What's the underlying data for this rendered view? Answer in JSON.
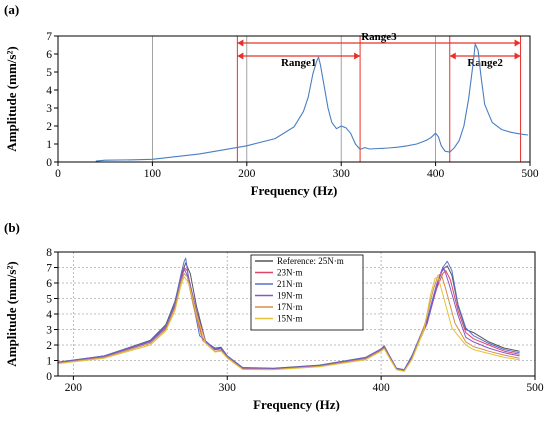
{
  "colors": {
    "range_lines": "#e8302b",
    "grid_a": "#8c8c8c",
    "grid_b": "#aaaaaa",
    "series_a": "#4a7ec0"
  },
  "chart_data": [
    {
      "panel": "(a)",
      "type": "line",
      "xlabel": "Frequency (Hz)",
      "ylabel": "Amplitude (mm/s²)",
      "xlim": [
        0,
        500
      ],
      "ylim": [
        0,
        7
      ],
      "xticks": [
        0,
        100,
        200,
        300,
        400,
        500
      ],
      "yticks": [
        0,
        1,
        2,
        3,
        4,
        5,
        6,
        7
      ],
      "grid": "vertical",
      "series": [
        {
          "color": "#4a7ec0",
          "x": [
            40,
            50,
            80,
            100,
            150,
            200,
            230,
            250,
            260,
            265,
            270,
            274,
            276,
            278,
            282,
            286,
            290,
            295,
            300,
            305,
            310,
            315,
            320,
            325,
            330,
            340,
            350,
            360,
            370,
            380,
            390,
            395,
            400,
            403,
            406,
            410,
            415,
            420,
            425,
            430,
            435,
            440,
            442,
            445,
            448,
            452,
            460,
            470,
            480,
            490,
            498
          ],
          "y": [
            0.05,
            0.1,
            0.12,
            0.15,
            0.45,
            0.9,
            1.3,
            1.95,
            2.8,
            3.6,
            4.9,
            5.6,
            5.82,
            5.4,
            4.2,
            3.0,
            2.2,
            1.85,
            2.0,
            1.9,
            1.6,
            1.0,
            0.7,
            0.8,
            0.72,
            0.75,
            0.78,
            0.82,
            0.9,
            1.0,
            1.2,
            1.35,
            1.6,
            1.4,
            0.9,
            0.6,
            0.55,
            0.8,
            1.2,
            2.0,
            3.5,
            5.6,
            6.55,
            6.2,
            4.8,
            3.2,
            2.2,
            1.8,
            1.65,
            1.55,
            1.5
          ]
        }
      ],
      "annotations": [
        {
          "label": "Range1",
          "from": 190,
          "to": 320
        },
        {
          "label": "Range2",
          "from": 415,
          "to": 490
        },
        {
          "label": "Range3",
          "from": 190,
          "to": 490
        }
      ]
    },
    {
      "panel": "(b)",
      "type": "line",
      "xlabel": "Frequency (Hz)",
      "ylabel": "Amplitude (mm/s²)",
      "xlim": [
        190,
        500
      ],
      "ylim": [
        0,
        8
      ],
      "xticks": [
        200,
        300,
        400,
        500
      ],
      "yticks": [
        0,
        1,
        2,
        3,
        4,
        5,
        6,
        7,
        8
      ],
      "grid": "both-dotted",
      "legend_position": "top-center",
      "series": [
        {
          "name": "Reference: 25N·m",
          "color": "#555555",
          "x": [
            190,
            220,
            250,
            260,
            266,
            270,
            273,
            276,
            280,
            286,
            292,
            296,
            300,
            310,
            330,
            360,
            390,
            400,
            402,
            406,
            410,
            415,
            420,
            430,
            436,
            440,
            443,
            446,
            450,
            455,
            460,
            470,
            480,
            490
          ],
          "y": [
            0.9,
            1.3,
            2.3,
            3.3,
            4.8,
            6.5,
            7.3,
            6.6,
            4.5,
            2.2,
            1.8,
            1.85,
            1.3,
            0.55,
            0.5,
            0.7,
            1.2,
            1.75,
            1.95,
            1.2,
            0.5,
            0.4,
            1.3,
            3.6,
            5.8,
            6.9,
            7.1,
            6.5,
            4.5,
            3.0,
            2.8,
            2.2,
            1.8,
            1.6
          ]
        },
        {
          "name": "23N·m",
          "color": "#e0456a",
          "x": [
            190,
            220,
            250,
            260,
            266,
            270,
            272,
            274,
            278,
            284,
            292,
            296,
            300,
            310,
            330,
            360,
            390,
            400,
            402,
            406,
            410,
            415,
            420,
            430,
            436,
            440,
            442,
            445,
            450,
            455,
            460,
            470,
            480,
            490
          ],
          "y": [
            0.85,
            1.25,
            2.2,
            3.1,
            4.6,
            6.3,
            7.0,
            6.8,
            4.8,
            2.4,
            1.7,
            1.75,
            1.25,
            0.5,
            0.45,
            0.65,
            1.15,
            1.7,
            1.9,
            1.15,
            0.45,
            0.35,
            1.2,
            3.5,
            5.6,
            6.6,
            6.8,
            6.2,
            4.2,
            2.8,
            2.4,
            2.0,
            1.6,
            1.4
          ]
        },
        {
          "name": "21N·m",
          "color": "#5a6fd0",
          "x": [
            190,
            220,
            250,
            260,
            266,
            270,
            272,
            273,
            276,
            282,
            292,
            296,
            300,
            310,
            330,
            360,
            390,
            400,
            402,
            406,
            410,
            415,
            420,
            430,
            436,
            440,
            443,
            446,
            450,
            455,
            460,
            470,
            480,
            490
          ],
          "y": [
            0.88,
            1.3,
            2.25,
            3.2,
            4.7,
            6.6,
            7.4,
            7.6,
            5.6,
            2.6,
            1.75,
            1.8,
            1.3,
            0.55,
            0.48,
            0.68,
            1.2,
            1.75,
            1.9,
            1.2,
            0.5,
            0.4,
            1.3,
            3.7,
            5.9,
            7.0,
            7.4,
            6.8,
            4.6,
            3.1,
            2.6,
            2.1,
            1.7,
            1.5
          ]
        },
        {
          "name": "19N·m",
          "color": "#8a55c8",
          "x": [
            190,
            220,
            250,
            260,
            266,
            270,
            272,
            275,
            280,
            286,
            292,
            296,
            300,
            310,
            330,
            360,
            390,
            400,
            402,
            406,
            410,
            415,
            420,
            430,
            436,
            439,
            441,
            444,
            450,
            455,
            460,
            470,
            480,
            490
          ],
          "y": [
            0.85,
            1.25,
            2.2,
            3.1,
            4.5,
            6.2,
            6.9,
            6.3,
            4.2,
            2.2,
            1.7,
            1.75,
            1.25,
            0.5,
            0.45,
            0.65,
            1.15,
            1.7,
            1.85,
            1.15,
            0.45,
            0.35,
            1.2,
            3.4,
            5.7,
            6.7,
            6.9,
            6.0,
            3.9,
            2.5,
            2.2,
            1.8,
            1.5,
            1.3
          ]
        },
        {
          "name": "17N·m",
          "color": "#d39048",
          "x": [
            190,
            220,
            250,
            260,
            266,
            270,
            272,
            274,
            278,
            284,
            292,
            296,
            300,
            310,
            330,
            360,
            390,
            400,
            402,
            406,
            410,
            415,
            420,
            428,
            434,
            437,
            439,
            442,
            448,
            455,
            460,
            470,
            480,
            490
          ],
          "y": [
            0.82,
            1.2,
            2.1,
            3.0,
            4.4,
            6.1,
            6.6,
            6.4,
            4.5,
            2.3,
            1.6,
            1.65,
            1.2,
            0.45,
            0.42,
            0.62,
            1.1,
            1.65,
            1.8,
            1.1,
            0.42,
            0.32,
            1.1,
            3.2,
            5.6,
            6.5,
            6.6,
            5.6,
            3.4,
            2.2,
            1.9,
            1.6,
            1.35,
            1.15
          ]
        },
        {
          "name": "15N·m",
          "color": "#e3c23a",
          "x": [
            190,
            220,
            250,
            260,
            266,
            270,
            272,
            275,
            280,
            286,
            292,
            296,
            300,
            310,
            330,
            360,
            390,
            400,
            402,
            406,
            410,
            415,
            420,
            428,
            432,
            435,
            437,
            440,
            446,
            455,
            460,
            470,
            480,
            490
          ],
          "y": [
            0.8,
            1.15,
            2.0,
            2.9,
            4.2,
            5.9,
            6.4,
            6.0,
            4.0,
            2.1,
            1.55,
            1.6,
            1.15,
            0.42,
            0.4,
            0.6,
            1.05,
            1.6,
            1.75,
            1.05,
            0.4,
            0.3,
            1.05,
            3.0,
            5.2,
            6.3,
            6.4,
            5.3,
            3.1,
            2.0,
            1.7,
            1.45,
            1.2,
            1.05
          ]
        }
      ]
    }
  ]
}
